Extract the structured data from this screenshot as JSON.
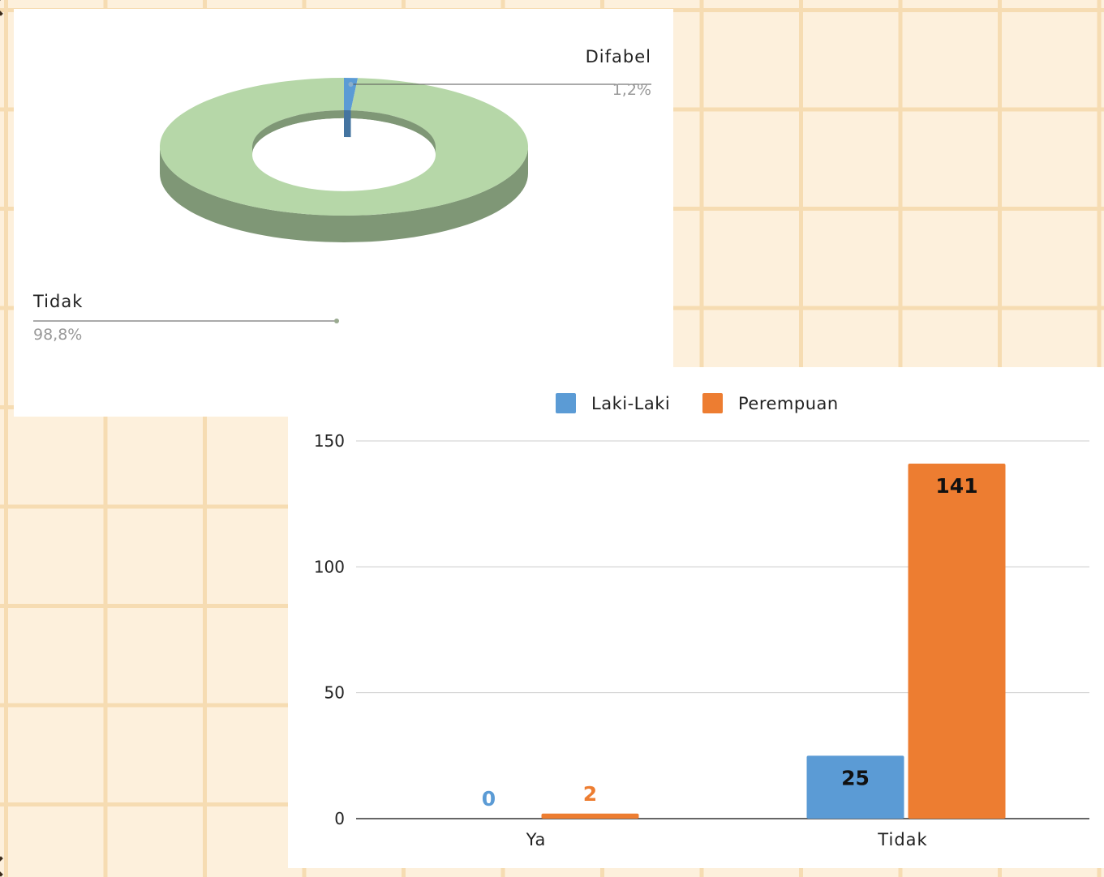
{
  "chart_data": [
    {
      "type": "pie",
      "style": "3d-donut",
      "title": "",
      "slices": [
        {
          "label": "Difabel",
          "percent_label": "1,2%",
          "value": 1.2,
          "color": "#5b9bd5"
        },
        {
          "label": "Tidak",
          "percent_label": "98,8%",
          "value": 98.8,
          "color": "#b6d7a8"
        }
      ]
    },
    {
      "type": "bar",
      "title": "",
      "categories": [
        "Ya",
        "Tidak"
      ],
      "series": [
        {
          "name": "Laki-Laki",
          "values": [
            0,
            25
          ],
          "color": "#5b9bd5"
        },
        {
          "name": "Perempuan",
          "values": [
            2,
            141
          ],
          "color": "#ed7d31"
        }
      ],
      "ylim": [
        0,
        150
      ],
      "yticks": [
        0,
        50,
        100,
        150
      ],
      "legend": "top-center",
      "grid": true
    }
  ]
}
